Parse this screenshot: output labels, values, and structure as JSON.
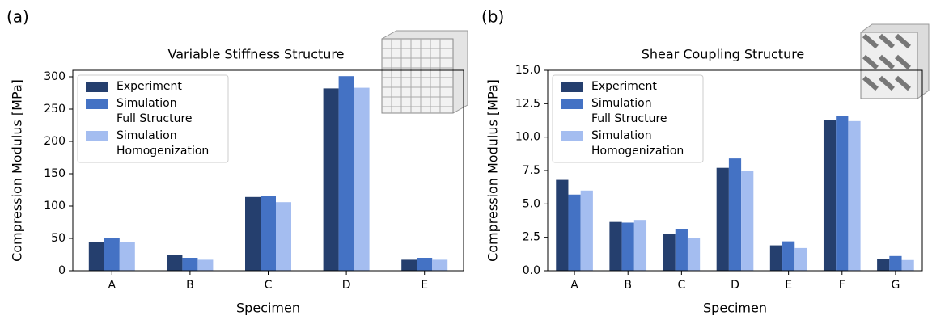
{
  "chart_data": [
    {
      "type": "bar",
      "panel_label": "(a)",
      "title": "Variable Stiffness Structure",
      "xlabel": "Specimen",
      "ylabel": "Compression Modulus [MPa]",
      "categories": [
        "A",
        "B",
        "C",
        "D",
        "E"
      ],
      "series": [
        {
          "name": "Experiment",
          "color": "#253f6e",
          "values": [
            45,
            25,
            114,
            282,
            17
          ]
        },
        {
          "name": "Simulation\nFull Structure",
          "color": "#4472c4",
          "values": [
            51,
            20,
            115,
            301,
            20
          ]
        },
        {
          "name": "Simulation\nHomogenization",
          "color": "#a4bdf0",
          "values": [
            45,
            17,
            106,
            283,
            17
          ]
        }
      ],
      "ylim": [
        0,
        310
      ],
      "yticks": [
        0,
        50,
        100,
        150,
        200,
        250,
        300
      ],
      "legend": "upper left"
    },
    {
      "type": "bar",
      "panel_label": "(b)",
      "title": "Shear Coupling Structure",
      "xlabel": "Specimen",
      "ylabel": "Compression Modulus [MPa]",
      "categories": [
        "A",
        "B",
        "C",
        "D",
        "E",
        "F",
        "G"
      ],
      "series": [
        {
          "name": "Experiment",
          "color": "#253f6e",
          "values": [
            6.8,
            3.65,
            2.75,
            7.7,
            1.9,
            11.25,
            0.85
          ]
        },
        {
          "name": "Simulation\nFull Structure",
          "color": "#4472c4",
          "values": [
            5.7,
            3.6,
            3.1,
            8.4,
            2.2,
            11.6,
            1.1
          ]
        },
        {
          "name": "Simulation\nHomogenization",
          "color": "#a4bdf0",
          "values": [
            6.0,
            3.8,
            2.45,
            7.5,
            1.7,
            11.2,
            0.8
          ]
        }
      ],
      "ylim": [
        0,
        15
      ],
      "yticks": [
        {
          "value": 0,
          "label": "0.0"
        },
        2.5,
        {
          "value": 5,
          "label": "5.0"
        },
        7.5,
        {
          "value": 10,
          "label": "10.0"
        },
        12.5,
        {
          "value": 15,
          "label": "15.0"
        }
      ],
      "legend": "upper left"
    }
  ]
}
